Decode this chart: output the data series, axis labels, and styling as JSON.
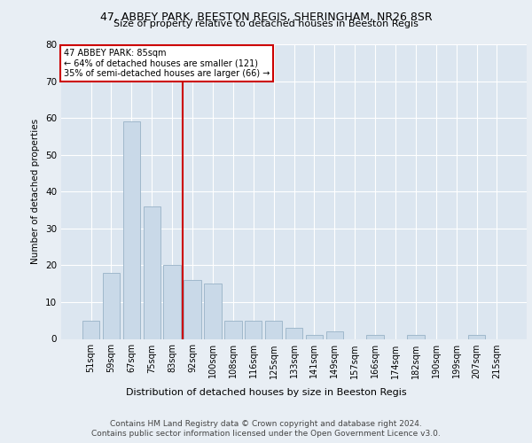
{
  "title1": "47, ABBEY PARK, BEESTON REGIS, SHERINGHAM, NR26 8SR",
  "title2": "Size of property relative to detached houses in Beeston Regis",
  "xlabel": "Distribution of detached houses by size in Beeston Regis",
  "ylabel": "Number of detached properties",
  "footer1": "Contains HM Land Registry data © Crown copyright and database right 2024.",
  "footer2": "Contains public sector information licensed under the Open Government Licence v3.0.",
  "annotation_line1": "47 ABBEY PARK: 85sqm",
  "annotation_line2": "← 64% of detached houses are smaller (121)",
  "annotation_line3": "35% of semi-detached houses are larger (66) →",
  "bar_labels": [
    "51sqm",
    "59sqm",
    "67sqm",
    "75sqm",
    "83sqm",
    "92sqm",
    "100sqm",
    "108sqm",
    "116sqm",
    "125sqm",
    "133sqm",
    "141sqm",
    "149sqm",
    "157sqm",
    "166sqm",
    "174sqm",
    "182sqm",
    "190sqm",
    "199sqm",
    "207sqm",
    "215sqm"
  ],
  "bar_values": [
    5,
    18,
    59,
    36,
    20,
    16,
    15,
    5,
    5,
    5,
    3,
    1,
    2,
    0,
    1,
    0,
    1,
    0,
    0,
    1,
    0
  ],
  "bar_color": "#c9d9e8",
  "bar_edge_color": "#a0b8cc",
  "marker_index": 4.5,
  "marker_color": "#cc0000",
  "bg_color": "#e8eef4",
  "plot_bg_color": "#dce6f0",
  "ylim": [
    0,
    80
  ],
  "yticks": [
    0,
    10,
    20,
    30,
    40,
    50,
    60,
    70,
    80
  ]
}
